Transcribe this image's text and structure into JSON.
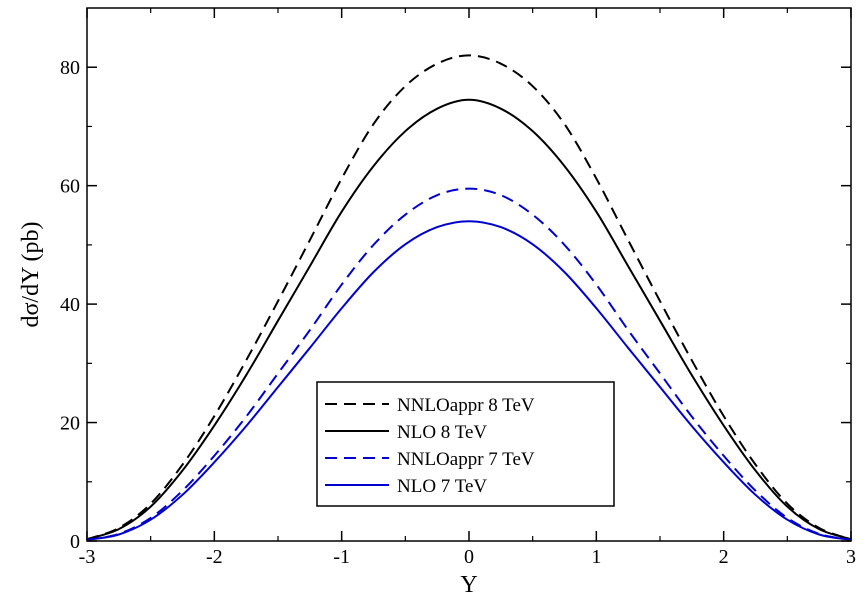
{
  "chart_data": {
    "type": "line",
    "title": "",
    "xlabel": "Y",
    "ylabel": "dσ/dY (pb)",
    "xlim": [
      -3,
      3
    ],
    "ylim": [
      0,
      90
    ],
    "xticks": [
      -3,
      -2,
      -1,
      0,
      1,
      2,
      3
    ],
    "yticks": [
      0,
      20,
      40,
      60,
      80
    ],
    "xtick_labels": [
      "-3",
      "-2",
      "-1",
      "0",
      "1",
      "2",
      "3"
    ],
    "ytick_labels": [
      "0",
      "20",
      "40",
      "60",
      "80"
    ],
    "grid": false,
    "legend_position": "bottom-center",
    "x": [
      -3,
      -2.75,
      -2.5,
      -2.25,
      -2,
      -1.75,
      -1.5,
      -1.25,
      -1,
      -0.75,
      -0.5,
      -0.25,
      0,
      0.25,
      0.5,
      0.75,
      1,
      1.25,
      1.5,
      1.75,
      2,
      2.25,
      2.5,
      2.75,
      3
    ],
    "series": [
      {
        "name": "NNLOappr  8 TeV",
        "color": "#000000",
        "dash": "dashed",
        "values": [
          0.3,
          2.2,
          6.3,
          12.9,
          21.1,
          30.5,
          40.5,
          50.8,
          61.2,
          70.4,
          76.8,
          80.6,
          82.0,
          80.6,
          76.8,
          70.4,
          61.2,
          50.8,
          40.5,
          30.5,
          21.1,
          12.9,
          6.3,
          2.2,
          0.3
        ]
      },
      {
        "name": "NLO  8 TeV",
        "color": "#000000",
        "dash": "solid",
        "values": [
          0.3,
          2.0,
          5.8,
          11.9,
          19.5,
          28.0,
          37.2,
          46.4,
          55.6,
          63.3,
          69.2,
          73.0,
          74.5,
          73.0,
          69.2,
          63.3,
          55.6,
          46.4,
          37.2,
          28.0,
          19.5,
          11.9,
          5.8,
          2.0,
          0.3
        ]
      },
      {
        "name": "NNLOappr 7 TeV",
        "color": "#0000cc",
        "dash": "dashed",
        "values": [
          0.2,
          1.2,
          3.9,
          8.5,
          14.4,
          21.0,
          28.3,
          35.6,
          43.3,
          50.0,
          55.1,
          58.4,
          59.5,
          58.4,
          55.1,
          50.0,
          43.3,
          35.6,
          28.3,
          21.0,
          14.4,
          8.5,
          3.9,
          1.2,
          0.2
        ]
      },
      {
        "name": "NLO 7 TeV",
        "color": "#0000cc",
        "dash": "solid",
        "values": [
          0.2,
          1.1,
          3.6,
          7.8,
          13.3,
          19.4,
          26.0,
          32.6,
          39.3,
          45.4,
          50.1,
          53.0,
          54.0,
          53.0,
          50.1,
          45.4,
          39.3,
          32.6,
          26.0,
          19.4,
          13.3,
          7.8,
          3.6,
          1.1,
          0.2
        ]
      }
    ]
  }
}
